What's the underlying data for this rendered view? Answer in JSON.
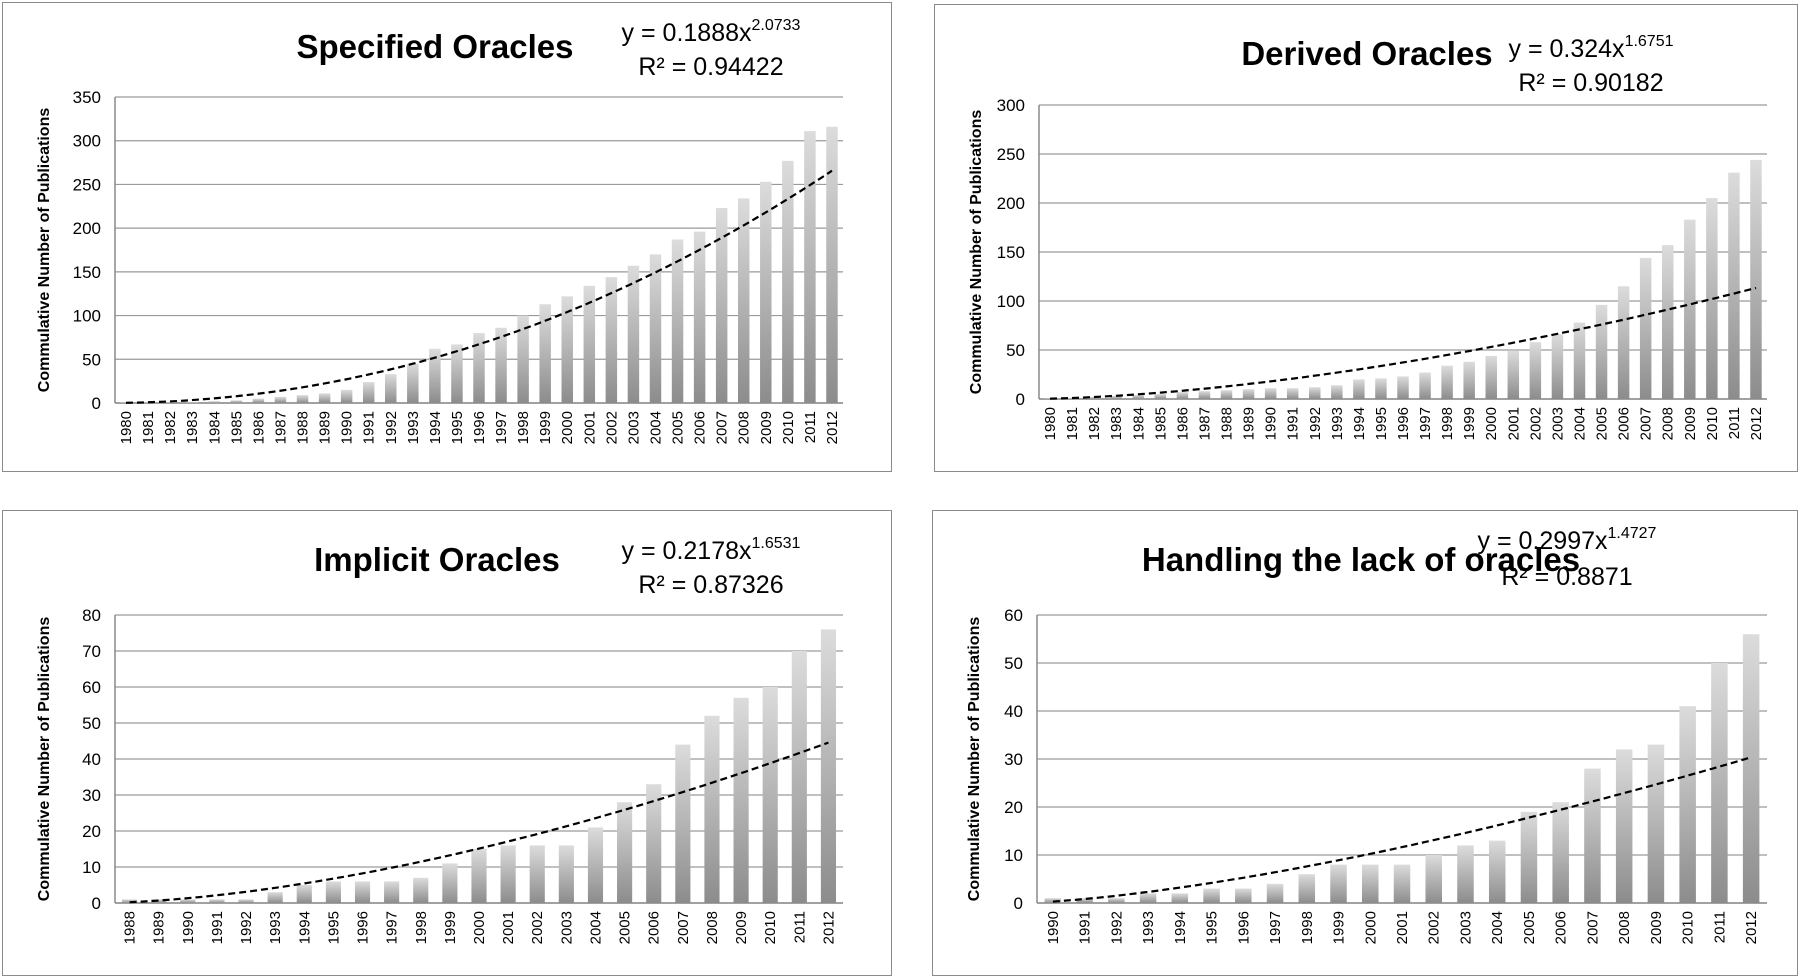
{
  "chart_data": [
    {
      "type": "bar",
      "title": "Specified Oracles",
      "ylabel": "Commulative  Number  of  Publications",
      "xlabel": "",
      "ylim": [
        0,
        350
      ],
      "yticks": [
        0,
        50,
        100,
        150,
        200,
        250,
        300,
        350
      ],
      "categories": [
        "1980",
        "1981",
        "1982",
        "1983",
        "1984",
        "1985",
        "1986",
        "1987",
        "1988",
        "1989",
        "1990",
        "1991",
        "1992",
        "1993",
        "1994",
        "1995",
        "1996",
        "1997",
        "1998",
        "1999",
        "2000",
        "2001",
        "2002",
        "2003",
        "2004",
        "2005",
        "2006",
        "2007",
        "2008",
        "2009",
        "2010",
        "2011",
        "2012"
      ],
      "values": [
        1,
        1,
        1,
        1,
        2,
        3,
        5,
        7,
        9,
        11,
        15,
        24,
        33,
        45,
        62,
        67,
        80,
        86,
        100,
        113,
        122,
        134,
        144,
        157,
        170,
        187,
        196,
        223,
        234,
        253,
        277,
        311,
        316
      ],
      "trendline": {
        "type": "power",
        "coef": 0.1888,
        "exp": 2.0733,
        "style": "dashed"
      },
      "equation": {
        "base": "y = 0.1888x",
        "exponent": "2.0733",
        "r2": "R² = 0.94422"
      },
      "bar_color": "#a8a8a8",
      "grid": true
    },
    {
      "type": "bar",
      "title": "Derived Oracles",
      "ylabel": "Commulative  Number  of  Publications",
      "xlabel": "",
      "ylim": [
        0,
        300
      ],
      "yticks": [
        0,
        50,
        100,
        150,
        200,
        250,
        300
      ],
      "categories": [
        "1980",
        "1981",
        "1982",
        "1983",
        "1984",
        "1985",
        "1986",
        "1987",
        "1988",
        "1989",
        "1990",
        "1991",
        "1992",
        "1993",
        "1994",
        "1995",
        "1996",
        "1997",
        "1998",
        "1999",
        "2000",
        "2001",
        "2002",
        "2003",
        "2004",
        "2005",
        "2006",
        "2007",
        "2008",
        "2009",
        "2010",
        "2011",
        "2012"
      ],
      "values": [
        1,
        1,
        2,
        3,
        4,
        5,
        7,
        8,
        9,
        10,
        11,
        11,
        12,
        14,
        20,
        21,
        23,
        27,
        34,
        38,
        44,
        49,
        58,
        66,
        78,
        96,
        115,
        144,
        157,
        183,
        205,
        231,
        244
      ],
      "trendline": {
        "type": "power",
        "coef": 0.324,
        "exp": 1.6751,
        "style": "dashed"
      },
      "equation": {
        "base": "y = 0.324x",
        "exponent": "1.6751",
        "r2": "R² = 0.90182"
      },
      "bar_color": "#a8a8a8",
      "grid": true
    },
    {
      "type": "bar",
      "title": "Implicit Oracles",
      "ylabel": "Commulative  Number  of  Publications",
      "xlabel": "",
      "ylim": [
        0,
        80
      ],
      "yticks": [
        0,
        10,
        20,
        30,
        40,
        50,
        60,
        70,
        80
      ],
      "categories": [
        "1988",
        "1989",
        "1990",
        "1991",
        "1992",
        "1993",
        "1994",
        "1995",
        "1996",
        "1997",
        "1998",
        "1999",
        "2000",
        "2001",
        "2002",
        "2003",
        "2004",
        "2005",
        "2006",
        "2007",
        "2008",
        "2009",
        "2010",
        "2011",
        "2012"
      ],
      "values": [
        1,
        1,
        1,
        1,
        1,
        3,
        5,
        6,
        6,
        6,
        7,
        11,
        15,
        16,
        16,
        16,
        21,
        28,
        33,
        44,
        52,
        57,
        60,
        70,
        76
      ],
      "trendline": {
        "type": "power",
        "coef": 0.2178,
        "exp": 1.6531,
        "style": "dashed"
      },
      "equation": {
        "base": "y = 0.2178x",
        "exponent": "1.6531",
        "r2": "R² = 0.87326"
      },
      "bar_color": "#a8a8a8",
      "grid": true
    },
    {
      "type": "bar",
      "title": "Handling the lack of oracles",
      "ylabel": "Commulative  Number  of  Publications",
      "xlabel": "",
      "ylim": [
        0,
        60
      ],
      "yticks": [
        0,
        10,
        20,
        30,
        40,
        50,
        60
      ],
      "categories": [
        "1990",
        "1991",
        "1992",
        "1993",
        "1994",
        "1995",
        "1996",
        "1997",
        "1998",
        "1999",
        "2000",
        "2001",
        "2002",
        "2003",
        "2004",
        "2005",
        "2006",
        "2007",
        "2008",
        "2009",
        "2010",
        "2011",
        "2012"
      ],
      "values": [
        1,
        1,
        1,
        2,
        2,
        3,
        3,
        4,
        6,
        8,
        8,
        8,
        10,
        12,
        13,
        19,
        21,
        28,
        32,
        33,
        41,
        50,
        56
      ],
      "trendline": {
        "type": "power",
        "coef": 0.2997,
        "exp": 1.4727,
        "style": "dashed"
      },
      "equation": {
        "base": "y = 0.2997x",
        "exponent": "1.4727",
        "r2": "R² = 0.8871"
      },
      "bar_color": "#a8a8a8",
      "grid": true
    }
  ]
}
